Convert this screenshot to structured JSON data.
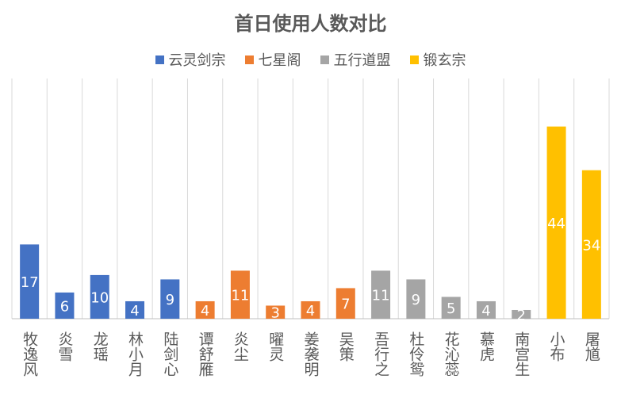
{
  "chart_data": {
    "type": "bar",
    "title": "首日使用人数对比",
    "xlabel": "",
    "ylabel": "",
    "ylim": [
      0,
      55
    ],
    "grid": "vertical",
    "legend": "top-center",
    "series_colors": {
      "云灵剑宗": "#4472C4",
      "七星阁": "#ED7D31",
      "五行道盟": "#A5A5A5",
      "锻玄宗": "#FFC000"
    },
    "legend_entries": [
      "云灵剑宗",
      "七星阁",
      "五行道盟",
      "锻玄宗"
    ],
    "bars": [
      {
        "category": "牧逸风",
        "value": 17,
        "group": "云灵剑宗",
        "label": "17"
      },
      {
        "category": "炎雪",
        "value": 6,
        "group": "云灵剑宗",
        "label": "6"
      },
      {
        "category": "龙瑶",
        "value": 10,
        "group": "云灵剑宗",
        "label": "10"
      },
      {
        "category": "林小月",
        "value": 4,
        "group": "云灵剑宗",
        "label": "4"
      },
      {
        "category": "陆剑心",
        "value": 9,
        "group": "云灵剑宗",
        "label": "9"
      },
      {
        "category": "谭舒雁",
        "value": 4,
        "group": "七星阁",
        "label": "4"
      },
      {
        "category": "炎尘",
        "value": 11,
        "group": "七星阁",
        "label": "11"
      },
      {
        "category": "曜灵",
        "value": 3,
        "group": "七星阁",
        "label": "3"
      },
      {
        "category": "姜袭明",
        "value": 4,
        "group": "七星阁",
        "label": "4"
      },
      {
        "category": "吴策",
        "value": 7,
        "group": "七星阁",
        "label": "7"
      },
      {
        "category": "吾行之",
        "value": 11,
        "group": "五行道盟",
        "label": "11"
      },
      {
        "category": "杜伶鸳",
        "value": 9,
        "group": "五行道盟",
        "label": "9"
      },
      {
        "category": "花沁蕊",
        "value": 5,
        "group": "五行道盟",
        "label": "5"
      },
      {
        "category": "慕虎",
        "value": 4,
        "group": "五行道盟",
        "label": "4"
      },
      {
        "category": "南宫生",
        "value": 2,
        "group": "五行道盟",
        "label": "2"
      },
      {
        "category": "小布",
        "value": 44,
        "group": "锻玄宗",
        "label": "44"
      },
      {
        "category": "屠馗",
        "value": 34,
        "group": "锻玄宗",
        "label": "34"
      }
    ]
  }
}
